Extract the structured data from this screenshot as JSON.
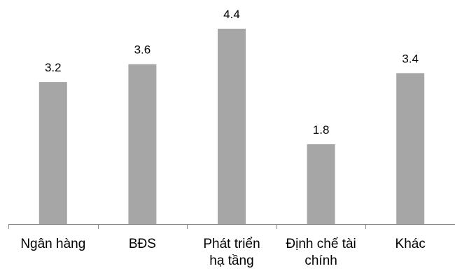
{
  "chart_data": {
    "type": "bar",
    "categories": [
      [
        "Ngân hàng"
      ],
      [
        "BĐS"
      ],
      [
        "Phát triển",
        "hạ tầng"
      ],
      [
        "Định chế tài",
        "chính"
      ],
      [
        "Khác"
      ]
    ],
    "values": [
      3.2,
      3.6,
      4.4,
      1.8,
      3.4
    ],
    "value_labels": [
      "3.2",
      "3.6",
      "4.4",
      "1.8",
      "3.4"
    ],
    "ylim": [
      0,
      4.4
    ],
    "bar_color": "#a6a6a6",
    "axis_color": "#888888",
    "title": "",
    "xlabel": "",
    "ylabel": "",
    "grid": false,
    "legend": "none"
  }
}
